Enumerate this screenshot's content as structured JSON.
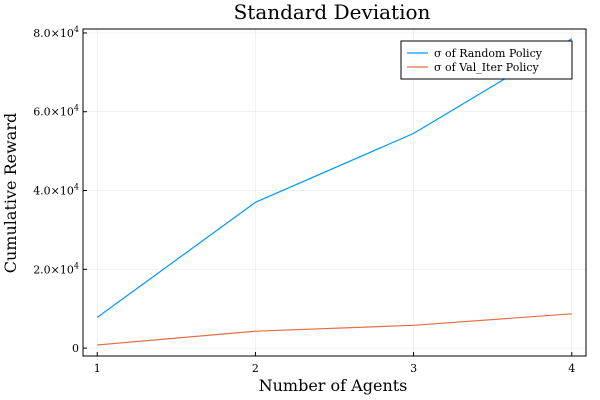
{
  "chart_data": {
    "type": "line",
    "title": "Standard Deviation",
    "xlabel": "Number of Agents",
    "ylabel": "Cumulative Reward",
    "x": [
      1,
      2,
      3,
      4
    ],
    "xticks": [
      "1",
      "2",
      "3",
      "4"
    ],
    "xlim": [
      0.91,
      4.09
    ],
    "ylim": [
      -2000,
      81000
    ],
    "yticks": [
      {
        "value": 0,
        "label": "0",
        "mantissa": "",
        "exp": ""
      },
      {
        "value": 20000,
        "label": "",
        "mantissa": "2.0×10",
        "exp": "4"
      },
      {
        "value": 40000,
        "label": "",
        "mantissa": "4.0×10",
        "exp": "4"
      },
      {
        "value": 60000,
        "label": "",
        "mantissa": "6.0×10",
        "exp": "4"
      },
      {
        "value": 80000,
        "label": "",
        "mantissa": "8.0×10",
        "exp": "4"
      }
    ],
    "grid": true,
    "legend_position": "top-right",
    "series": [
      {
        "name": "σ of Random Policy",
        "color": "#009af9",
        "values": [
          7800,
          37000,
          54500,
          78500
        ]
      },
      {
        "name": "σ of Val_Iter Policy",
        "color": "#e26f46",
        "values": [
          800,
          4300,
          5800,
          8700
        ]
      }
    ]
  }
}
